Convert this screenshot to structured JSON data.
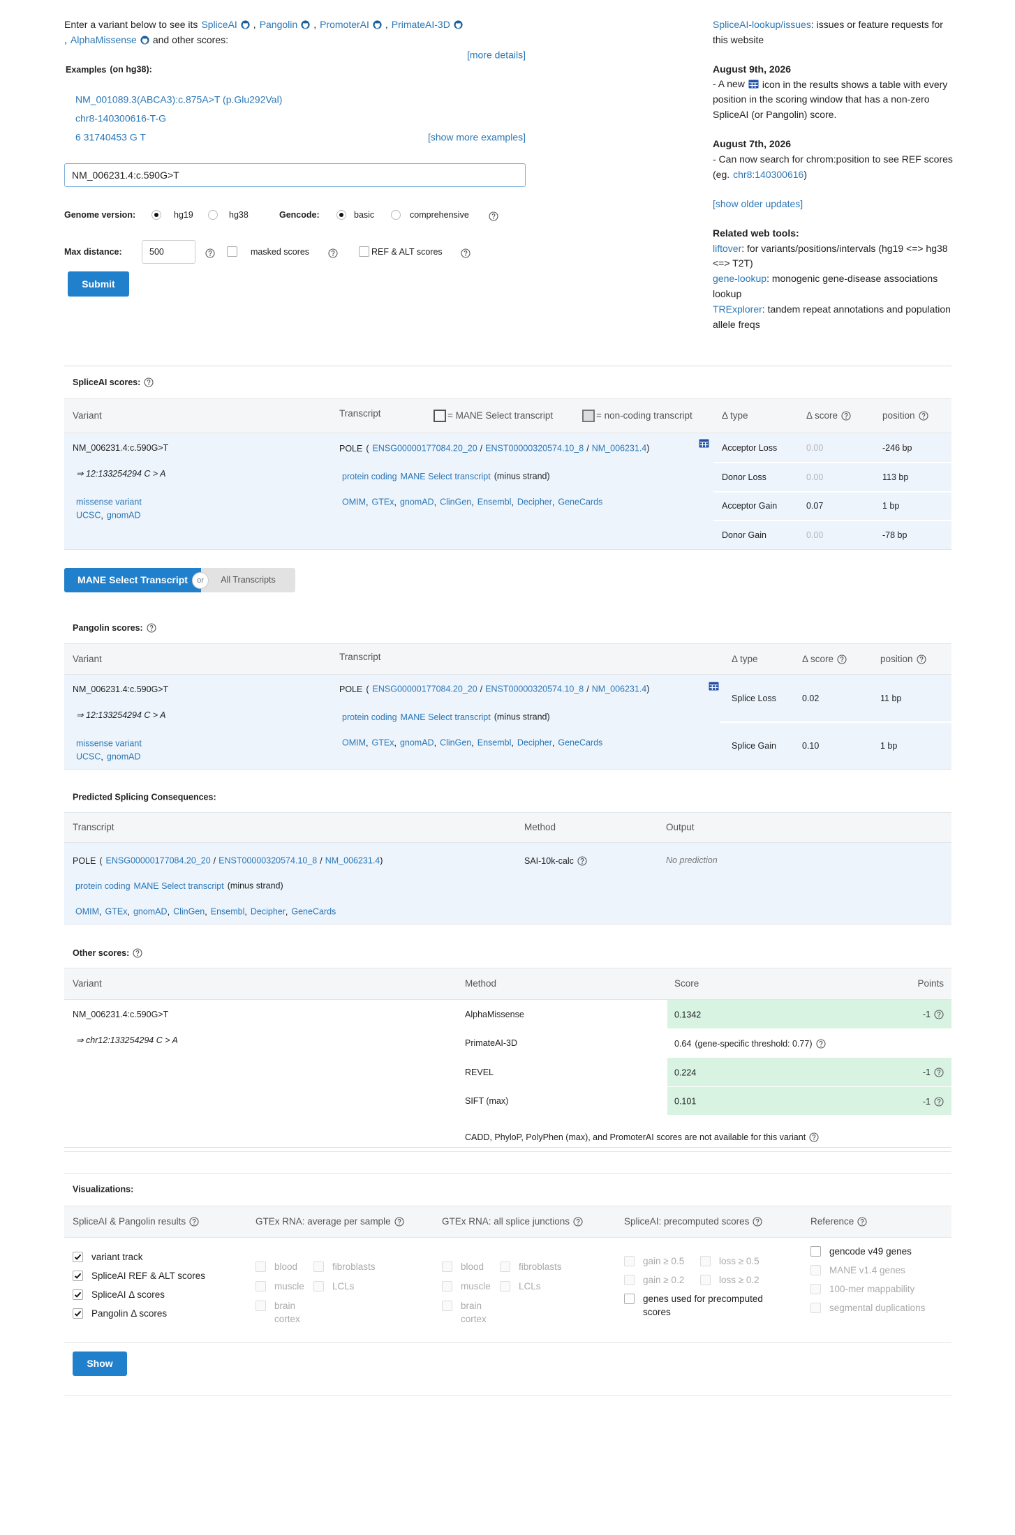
{
  "punct": {
    "comma": ",",
    "slash": "/",
    "open": "(",
    "close": ")"
  },
  "intro": {
    "lead": "Enter a variant below to see its",
    "tools": [
      "SpliceAI",
      "Pangolin",
      "PromoterAI",
      "PrimateAI-3D",
      "AlphaMissense"
    ],
    "tail": "and other scores:",
    "more_details": "[more details]"
  },
  "examples": {
    "title": "Examples",
    "build": "(on hg38):",
    "items": [
      "NM_001089.3(ABCA3):c.875A>T (p.Glu292Val)",
      "chr8-140300616-T-G",
      "6  31740453  G  T"
    ],
    "show_more": "[show more examples]"
  },
  "form": {
    "input": "NM_006231.4:c.590G>T",
    "genome_label": "Genome version:",
    "genome_options": [
      "hg19",
      "hg38"
    ],
    "genome_selected": 0,
    "gencode_label": "Gencode:",
    "gencode_options": [
      "basic",
      "comprehensive"
    ],
    "gencode_selected": 0,
    "max_distance_label": "Max distance:",
    "max_distance": "500",
    "masked": "masked scores",
    "ref_alt": "REF & ALT scores",
    "submit": "Submit"
  },
  "sidebar": {
    "issues_link": "SpliceAI-lookup/issues",
    "issues_text": ": issues or feature requests for this website",
    "updates": [
      {
        "date": "August 9th, 2026",
        "before": "- A new",
        "after": "icon in the results shows a table with every position in the scoring window that has a non-zero SpliceAI (or Pangolin) score."
      },
      {
        "date": "August 7th, 2026",
        "before": "- Can now search for chrom:position to see REF scores (eg.",
        "link": "chr8:140300616",
        "after": ")"
      }
    ],
    "older": "[show older updates]",
    "tools_title": "Related web tools:",
    "tools": [
      {
        "name": "liftover",
        "desc": ": for variants/positions/intervals (hg19 <=> hg38 <=> T2T)"
      },
      {
        "name": "gene-lookup",
        "desc": ": monogenic gene-disease associations lookup"
      },
      {
        "name": "TRExplorer",
        "desc": ": tandem repeat annotations and population allele freqs"
      }
    ]
  },
  "spliceai": {
    "title": "SpliceAI scores:",
    "headers": {
      "variant": "Variant",
      "transcript": "Transcript",
      "mane_legend": "= MANE Select transcript",
      "noncoding_legend": "= non-coding transcript",
      "type": "Δ type",
      "score": "Δ score",
      "position": "position"
    },
    "variant": {
      "name": "NM_006231.4:c.590G>T",
      "coords": "⇒ 12:133254294 C > A",
      "consequence": "missense variant",
      "links": [
        "UCSC",
        "gnomAD"
      ]
    },
    "transcript": {
      "gene": "POLE",
      "ids": [
        "ENSG00000177084.20_20",
        "ENST00000320574.10_8",
        "NM_006231.4"
      ],
      "biotype": "protein coding",
      "mane": "MANE Select transcript",
      "strand": "(minus strand)",
      "links": [
        "OMIM",
        "GTEx",
        "gnomAD",
        "ClinGen",
        "Ensembl",
        "Decipher",
        "GeneCards"
      ]
    },
    "rows": [
      {
        "type": "Acceptor Loss",
        "score": "0.00",
        "position": "-246 bp"
      },
      {
        "type": "Donor Loss",
        "score": "0.00",
        "position": "113 bp"
      },
      {
        "type": "Acceptor Gain",
        "score": "0.07",
        "position": "1 bp"
      },
      {
        "type": "Donor Gain",
        "score": "0.00",
        "position": "-78 bp"
      }
    ]
  },
  "toggle": {
    "mane": "MANE Select Transcript",
    "or": "or",
    "all": "All Transcripts"
  },
  "pangolin": {
    "title": "Pangolin scores:",
    "headers": {
      "variant": "Variant",
      "transcript": "Transcript",
      "type": "Δ type",
      "score": "Δ score",
      "position": "position"
    },
    "variant": {
      "name": "NM_006231.4:c.590G>T",
      "coords": "⇒ 12:133254294 C > A",
      "consequence": "missense variant",
      "links": [
        "UCSC",
        "gnomAD"
      ]
    },
    "transcript": {
      "gene": "POLE",
      "ids": [
        "ENSG00000177084.20_20",
        "ENST00000320574.10_8",
        "NM_006231.4"
      ],
      "biotype": "protein coding",
      "mane": "MANE Select transcript",
      "strand": "(minus strand)",
      "links": [
        "OMIM",
        "GTEx",
        "gnomAD",
        "ClinGen",
        "Ensembl",
        "Decipher",
        "GeneCards"
      ]
    },
    "rows": [
      {
        "type": "Splice Loss",
        "score": "0.02",
        "position": "11 bp"
      },
      {
        "type": "Splice Gain",
        "score": "0.10",
        "position": "1 bp"
      }
    ]
  },
  "predicted": {
    "title": "Predicted Splicing Consequences:",
    "headers": {
      "transcript": "Transcript",
      "method": "Method",
      "output": "Output"
    },
    "transcript": {
      "gene": "POLE",
      "ids": [
        "ENSG00000177084.20_20",
        "ENST00000320574.10_8",
        "NM_006231.4"
      ],
      "biotype": "protein coding",
      "mane": "MANE Select transcript",
      "strand": "(minus strand)",
      "links": [
        "OMIM",
        "GTEx",
        "gnomAD",
        "ClinGen",
        "Ensembl",
        "Decipher",
        "GeneCards"
      ]
    },
    "method": "SAI-10k-calc",
    "output": "No prediction"
  },
  "other": {
    "title": "Other scores:",
    "headers": {
      "variant": "Variant",
      "method": "Method",
      "score": "Score",
      "points": "Points"
    },
    "variant": {
      "name": "NM_006231.4:c.590G>T",
      "coords": "⇒ chr12:133254294 C > A"
    },
    "rows": [
      {
        "method": "AlphaMissense",
        "score": "0.1342",
        "points": "-1"
      },
      {
        "method": "PrimateAI-3D",
        "score": "0.64",
        "threshold": "(gene-specific threshold: 0.77)"
      },
      {
        "method": "REVEL",
        "score": "0.224",
        "points": "-1"
      },
      {
        "method": "SIFT (max)",
        "score": "0.101",
        "points": "-1"
      }
    ],
    "note": "CADD,  PhyloP,  PolyPhen (max),  and PromoterAI scores are not available for this variant"
  },
  "viz": {
    "title": "Visualizations:",
    "columns": [
      {
        "title": "SpliceAI & Pangolin results",
        "items": [
          {
            "label": "variant track",
            "checked": true,
            "enabled": true
          },
          {
            "label": "SpliceAI REF & ALT scores",
            "checked": true,
            "enabled": true
          },
          {
            "label": "SpliceAI Δ scores",
            "checked": true,
            "enabled": true
          },
          {
            "label": "Pangolin Δ scores",
            "checked": true,
            "enabled": true
          }
        ]
      },
      {
        "title": "GTEx RNA: average per sample",
        "items": [
          {
            "label": "blood",
            "checked": false,
            "enabled": false
          },
          {
            "label": "fibroblasts",
            "checked": false,
            "enabled": false
          },
          {
            "label": "muscle",
            "checked": false,
            "enabled": false
          },
          {
            "label": "LCLs",
            "checked": false,
            "enabled": false
          },
          {
            "label": "brain cortex",
            "checked": false,
            "enabled": false
          }
        ]
      },
      {
        "title": "GTEx RNA: all splice junctions",
        "items": [
          {
            "label": "blood",
            "checked": false,
            "enabled": false
          },
          {
            "label": "fibroblasts",
            "checked": false,
            "enabled": false
          },
          {
            "label": "muscle",
            "checked": false,
            "enabled": false
          },
          {
            "label": "LCLs",
            "checked": false,
            "enabled": false
          },
          {
            "label": "brain cortex",
            "checked": false,
            "enabled": false
          }
        ]
      },
      {
        "title": "SpliceAI: precomputed scores",
        "items": [
          {
            "label": "gain ≥ 0.5",
            "checked": false,
            "enabled": false
          },
          {
            "label": "loss ≥ 0.5",
            "checked": false,
            "enabled": false
          },
          {
            "label": "gain ≥ 0.2",
            "checked": false,
            "enabled": false
          },
          {
            "label": "loss ≥ 0.2",
            "checked": false,
            "enabled": false
          },
          {
            "label": "genes used for precomputed scores",
            "checked": false,
            "enabled": true
          }
        ]
      },
      {
        "title": "Reference",
        "items": [
          {
            "label": "gencode v49 genes",
            "checked": false,
            "enabled": true
          },
          {
            "label": "MANE v1.4 genes",
            "checked": false,
            "enabled": false
          },
          {
            "label": "100-mer mappability",
            "checked": false,
            "enabled": false
          },
          {
            "label": "segmental duplications",
            "checked": false,
            "enabled": false
          }
        ]
      }
    ],
    "show": "Show"
  }
}
